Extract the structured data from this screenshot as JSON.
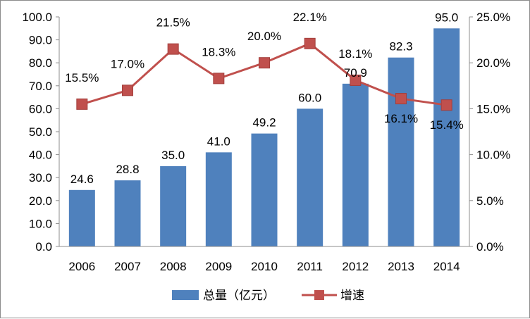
{
  "chart_data": {
    "type": "bar+line",
    "title": "",
    "categories": [
      "2006",
      "2007",
      "2008",
      "2009",
      "2010",
      "2011",
      "2012",
      "2013",
      "2014"
    ],
    "series": [
      {
        "name": "总量（亿元）",
        "type": "bar",
        "axis": "left",
        "color": "#4f81bd",
        "values": [
          24.6,
          28.8,
          35.0,
          41.0,
          49.2,
          60.0,
          70.9,
          82.3,
          95.0
        ],
        "labels": [
          "24.6",
          "28.8",
          "35.0",
          "41.0",
          "49.2",
          "60.0",
          "70.9",
          "82.3",
          "95.0"
        ]
      },
      {
        "name": "增速",
        "type": "line",
        "axis": "right",
        "color": "#c0504d",
        "values": [
          15.5,
          17.0,
          21.5,
          18.3,
          20.0,
          22.1,
          18.1,
          16.1,
          15.4
        ],
        "labels": [
          "15.5%",
          "17.0%",
          "21.5%",
          "18.3%",
          "20.0%",
          "22.1%",
          "18.1%",
          "16.1%",
          "15.4%"
        ]
      }
    ],
    "y_left": {
      "min": 0,
      "max": 100,
      "ticks": [
        0,
        10,
        20,
        30,
        40,
        50,
        60,
        70,
        80,
        90,
        100
      ],
      "tick_labels": [
        "0.0",
        "10.0",
        "20.0",
        "30.0",
        "40.0",
        "50.0",
        "60.0",
        "70.0",
        "80.0",
        "90.0",
        "100.0"
      ]
    },
    "y_right": {
      "min": 0,
      "max": 25,
      "ticks": [
        0,
        5,
        10,
        15,
        20,
        25
      ],
      "tick_labels": [
        "0.0%",
        "5.0%",
        "10.0%",
        "15.0%",
        "20.0%",
        "25.0%"
      ]
    },
    "grid": false,
    "legend": {
      "position": "bottom"
    }
  }
}
